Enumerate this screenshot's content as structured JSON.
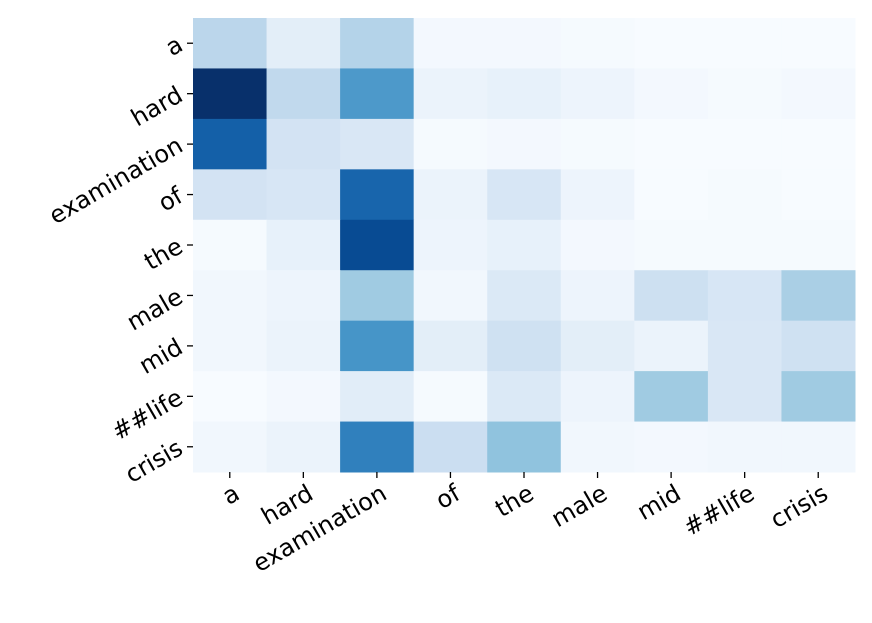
{
  "chart_data": {
    "type": "heatmap",
    "colormap": "Blues",
    "x_categories": [
      "a",
      "hard",
      "examination",
      "of",
      "the",
      "male",
      "mid",
      "##life",
      "crisis"
    ],
    "y_categories": [
      "a",
      "hard",
      "examination",
      "of",
      "the",
      "male",
      "mid",
      "##life",
      "crisis"
    ],
    "z": [
      [
        0.3,
        0.12,
        0.32,
        0.04,
        0.04,
        0.03,
        0.02,
        0.02,
        0.02
      ],
      [
        1.0,
        0.28,
        0.6,
        0.08,
        0.1,
        0.07,
        0.04,
        0.03,
        0.04
      ],
      [
        0.82,
        0.2,
        0.17,
        0.03,
        0.04,
        0.03,
        0.02,
        0.02,
        0.02
      ],
      [
        0.2,
        0.18,
        0.8,
        0.08,
        0.18,
        0.07,
        0.02,
        0.03,
        0.02
      ],
      [
        0.03,
        0.1,
        0.9,
        0.07,
        0.1,
        0.04,
        0.03,
        0.03,
        0.03
      ],
      [
        0.05,
        0.07,
        0.38,
        0.05,
        0.16,
        0.07,
        0.23,
        0.18,
        0.35
      ],
      [
        0.05,
        0.08,
        0.62,
        0.12,
        0.22,
        0.12,
        0.08,
        0.17,
        0.22
      ],
      [
        0.02,
        0.04,
        0.13,
        0.03,
        0.16,
        0.07,
        0.38,
        0.17,
        0.38
      ],
      [
        0.05,
        0.08,
        0.7,
        0.24,
        0.42,
        0.05,
        0.04,
        0.05,
        0.05
      ]
    ]
  }
}
